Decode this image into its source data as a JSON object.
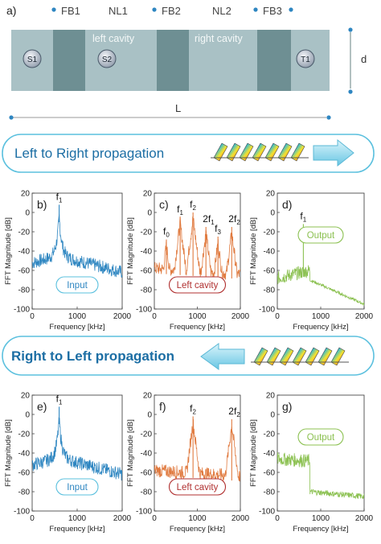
{
  "panel_a": {
    "label": "a)",
    "top_labels": [
      "FB1",
      "NL1",
      "FB2",
      "NL2",
      "FB3"
    ],
    "cavity_labels": [
      "left cavity",
      "right cavity"
    ],
    "sensors": [
      "S1",
      "S2",
      "T1"
    ],
    "dim_d": "d",
    "dim_L": "L"
  },
  "banner_top": {
    "text": "Left to Right propagation"
  },
  "banner_bottom": {
    "text": "Right to Left propagation"
  },
  "colors": {
    "input": "#2e86c1",
    "left_cavity": "#e07a3f",
    "output": "#8cc152",
    "pill": "#5bc0de",
    "cavity_text": "#b03030",
    "beam": "#9fb8bd",
    "block": "#6e8f93"
  },
  "axes": {
    "xlabel": "Frequency [kHz]",
    "ylabel": "FFT Magnitude [dB]",
    "xticks": [
      "0",
      "1000",
      "2000"
    ],
    "yticks": [
      "-100",
      "-80",
      "-60",
      "-40",
      "-20",
      "0",
      "20"
    ]
  },
  "chart_data": [
    {
      "type": "line",
      "panel": "b)",
      "legend": "Input",
      "peaks": [
        {
          "label": "f",
          "sub": "1",
          "x": 600,
          "y": 8
        }
      ],
      "xlim": [
        0,
        2000
      ],
      "ylim": [
        -100,
        20
      ]
    },
    {
      "type": "line",
      "panel": "c)",
      "legend": "Left cavity",
      "peaks": [
        {
          "label": "f",
          "sub": "0",
          "x": 280,
          "y": -28
        },
        {
          "label": "f",
          "sub": "1",
          "x": 600,
          "y": -5
        },
        {
          "label": "f",
          "sub": "2",
          "x": 900,
          "y": 0
        },
        {
          "label": "2f",
          "sub": "1",
          "x": 1200,
          "y": -15
        },
        {
          "label": "f",
          "sub": "3",
          "x": 1480,
          "y": -25
        },
        {
          "label": "2f",
          "sub": "2",
          "x": 1800,
          "y": -15
        }
      ],
      "xlim": [
        0,
        2000
      ],
      "ylim": [
        -100,
        20
      ]
    },
    {
      "type": "line",
      "panel": "d)",
      "legend": "Output",
      "peaks": [
        {
          "label": "f",
          "sub": "1",
          "x": 600,
          "y": -12
        }
      ],
      "xlim": [
        0,
        2000
      ],
      "ylim": [
        -100,
        20
      ]
    },
    {
      "type": "line",
      "panel": "e)",
      "legend": "Input",
      "peaks": [
        {
          "label": "f",
          "sub": "1",
          "x": 600,
          "y": 8
        }
      ],
      "xlim": [
        0,
        2000
      ],
      "ylim": [
        -100,
        20
      ]
    },
    {
      "type": "line",
      "panel": "f)",
      "legend": "Left cavity",
      "peaks": [
        {
          "label": "f",
          "sub": "2",
          "x": 900,
          "y": -2
        },
        {
          "label": "2f",
          "sub": "2",
          "x": 1800,
          "y": -5
        }
      ],
      "xlim": [
        0,
        2000
      ],
      "ylim": [
        -100,
        20
      ]
    },
    {
      "type": "line",
      "panel": "g)",
      "legend": "Output",
      "peaks": [],
      "xlim": [
        0,
        2000
      ],
      "ylim": [
        -100,
        20
      ]
    }
  ]
}
